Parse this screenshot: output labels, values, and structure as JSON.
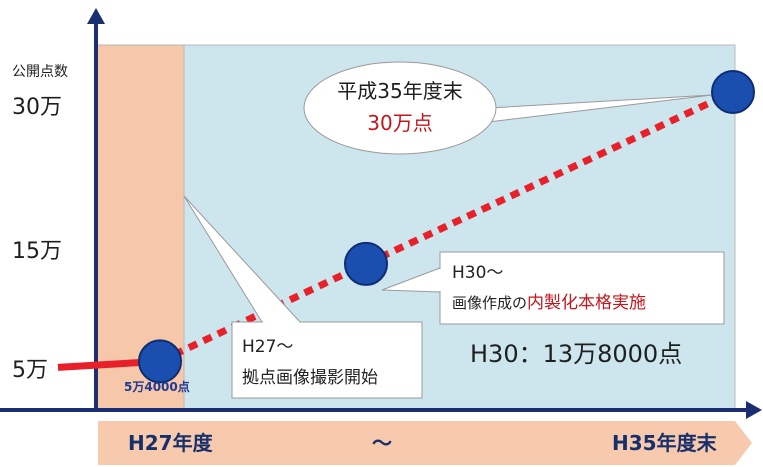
{
  "chart_data": {
    "type": "line",
    "title": "",
    "ylabel": "公開点数",
    "y_tick_labels": [
      "30万",
      "15万",
      "5万"
    ],
    "y_ticks": [
      300000,
      150000,
      50000
    ],
    "x_labels": {
      "start": "H27年度",
      "middle": "～",
      "end": "H35年度末"
    },
    "series": [
      {
        "points": [
          {
            "x": "H27",
            "y": 54000
          },
          {
            "x": "H30",
            "y": 138000
          },
          {
            "x": "H35",
            "y": 300000
          }
        ]
      }
    ],
    "annotations": {
      "start_point_label": "5万4000点",
      "callout_h27": {
        "line1": "H27～",
        "line2": "拠点画像撮影開始"
      },
      "callout_h30": {
        "line1": "H30～",
        "line2_prefix": "画像作成の",
        "line2_highlight": "内製化本格実施"
      },
      "h30_value_text": "H30：13万8000点",
      "end_bubble": {
        "line1": "平成35年度末",
        "line2": "30万点"
      }
    }
  },
  "colors": {
    "axis": "#1c2e73",
    "phase1_bg": "#f6c7a8",
    "phase2_bg": "#cde5ec",
    "marker_fill": "#1a4fb0",
    "marker_stroke": "#0f2d73",
    "trend_line": "#e8202a",
    "arrow_bar": "#f7c9ad"
  }
}
